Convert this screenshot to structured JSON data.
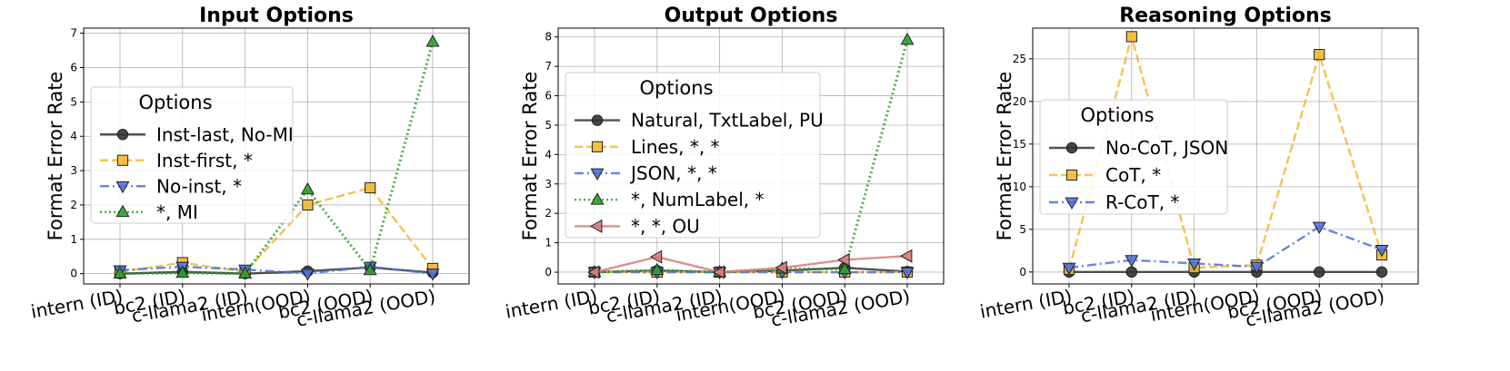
{
  "chart_data": [
    {
      "type": "line",
      "title": "Input Options",
      "ylabel": "Format Error Rate",
      "xlabel": "",
      "ylim": [
        -0.3,
        7.15
      ],
      "yticks": [
        0,
        1,
        2,
        3,
        4,
        5,
        6,
        7
      ],
      "ytick_labels": [
        "0",
        "1",
        "2",
        "3",
        "4",
        "5",
        "6",
        "7"
      ],
      "categories": [
        "intern (ID)",
        "bc2 (ID)",
        "c-llama2 (ID)",
        "intern(OOD)",
        "bc2 (OOD)",
        "c-llama2 (OOD)"
      ],
      "grid": true,
      "legend": {
        "title": "Options",
        "placement": "center-left"
      },
      "series": [
        {
          "name": "Inst-last, No-MI",
          "values": [
            0.0,
            0.05,
            0.0,
            0.07,
            0.18,
            0.03
          ],
          "color": "#333333",
          "linestyle": "solid",
          "marker": "circle"
        },
        {
          "name": "Inst-first, *",
          "values": [
            0.05,
            0.32,
            0.05,
            2.0,
            2.5,
            0.15
          ],
          "color": "#F5B731",
          "linestyle": "dashed",
          "marker": "square"
        },
        {
          "name": "No-inst, *",
          "values": [
            0.1,
            0.2,
            0.12,
            0.0,
            0.2,
            0.0
          ],
          "color": "#4C72DB",
          "linestyle": "dashdot",
          "marker": "triangle-down"
        },
        {
          "name": "*, MI",
          "values": [
            0.0,
            0.02,
            0.0,
            2.45,
            0.1,
            6.75
          ],
          "color": "#2CA02C",
          "linestyle": "dotted",
          "marker": "triangle-up"
        }
      ]
    },
    {
      "type": "line",
      "title": "Output Options",
      "ylabel": "Format Error Rate",
      "xlabel": "",
      "ylim": [
        -0.4,
        8.3
      ],
      "yticks": [
        0,
        1,
        2,
        3,
        4,
        5,
        6,
        7,
        8
      ],
      "ytick_labels": [
        "0",
        "1",
        "2",
        "3",
        "4",
        "5",
        "6",
        "7",
        "8"
      ],
      "categories": [
        "intern (ID)",
        "bc2 (ID)",
        "c-llama2 (ID)",
        "intern(OOD)",
        "bc2 (OOD)",
        "c-llama2 (OOD)"
      ],
      "grid": true,
      "legend": {
        "title": "Options",
        "placement": "upper-left"
      },
      "series": [
        {
          "name": "Natural, TxtLabel, PU",
          "values": [
            0.0,
            0.05,
            0.0,
            0.05,
            0.15,
            0.02
          ],
          "color": "#333333",
          "linestyle": "solid",
          "marker": "circle"
        },
        {
          "name": "Lines, *, *",
          "values": [
            0.0,
            0.0,
            0.0,
            0.0,
            0.0,
            0.0
          ],
          "color": "#F5B731",
          "linestyle": "dashed",
          "marker": "square"
        },
        {
          "name": "JSON, *, *",
          "values": [
            0.0,
            0.0,
            0.0,
            0.0,
            0.0,
            0.0
          ],
          "color": "#4C72DB",
          "linestyle": "dashdot",
          "marker": "triangle-down"
        },
        {
          "name": "*, NumLabel, *",
          "values": [
            0.0,
            0.07,
            0.0,
            0.12,
            0.1,
            7.9
          ],
          "color": "#2CA02C",
          "linestyle": "dotted",
          "marker": "triangle-up"
        },
        {
          "name": "*, *, OU",
          "values": [
            0.0,
            0.52,
            0.0,
            0.15,
            0.42,
            0.55
          ],
          "color": "#D97A7A",
          "linestyle": "solid",
          "marker": "triangle-left"
        }
      ]
    },
    {
      "type": "line",
      "title": "Reasoning Options",
      "ylabel": "Format Error Rate",
      "xlabel": "",
      "ylim": [
        -1.4,
        28.6
      ],
      "yticks": [
        0,
        5,
        10,
        15,
        20,
        25
      ],
      "ytick_labels": [
        "0",
        "5",
        "10",
        "15",
        "20",
        "25"
      ],
      "categories": [
        "intern (ID)",
        "bc2 (ID)",
        "c-llama2 (ID)",
        "intern(OOD)",
        "bc2 (OOD)",
        "c-llama2 (OOD)"
      ],
      "grid": true,
      "legend": {
        "title": "Options",
        "placement": "center-left"
      },
      "series": [
        {
          "name": "No-CoT, JSON",
          "values": [
            0.0,
            0.0,
            0.0,
            0.0,
            0.0,
            0.0
          ],
          "color": "#333333",
          "linestyle": "solid",
          "marker": "circle"
        },
        {
          "name": "CoT, *",
          "values": [
            0.3,
            27.6,
            0.5,
            0.8,
            25.5,
            2.0
          ],
          "color": "#F5B731",
          "linestyle": "dashed",
          "marker": "square"
        },
        {
          "name": "R-CoT, *",
          "values": [
            0.5,
            1.4,
            1.0,
            0.6,
            5.3,
            2.6
          ],
          "color": "#4C72DB",
          "linestyle": "dashdot",
          "marker": "triangle-down"
        }
      ]
    }
  ]
}
